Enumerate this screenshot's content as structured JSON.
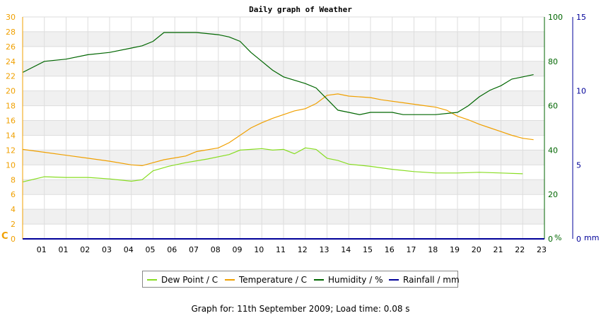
{
  "chart_data": {
    "type": "line",
    "title": "Daily graph of Weather",
    "x_ticks": [
      "01",
      "01",
      "02",
      "03",
      "04",
      "05",
      "06",
      "07",
      "08",
      "09",
      "10",
      "11",
      "12",
      "13",
      "14",
      "15",
      "16",
      "17",
      "18",
      "19",
      "20",
      "21",
      "22",
      "23"
    ],
    "xlim": [
      0,
      24
    ],
    "axes": {
      "left": {
        "unit": "C",
        "ticks": [
          0,
          2,
          4,
          6,
          8,
          10,
          12,
          14,
          16,
          18,
          20,
          22,
          24,
          26,
          28,
          30
        ],
        "range": [
          0,
          30
        ],
        "color": "#f0a000"
      },
      "right1": {
        "unit": "%",
        "ticks": [
          0,
          20,
          40,
          60,
          80,
          100
        ],
        "range": [
          0,
          100
        ],
        "color": "#006600"
      },
      "right2": {
        "unit": "mm",
        "ticks": [
          0,
          5,
          10,
          15
        ],
        "range": [
          0,
          15
        ],
        "color": "#000099"
      }
    },
    "grid": true,
    "legend_position": "bottom",
    "series": [
      {
        "name": "Dew Point / C",
        "axis": "left",
        "color": "#88dd22",
        "points": [
          [
            0,
            7.7
          ],
          [
            1,
            8.4
          ],
          [
            2,
            8.3
          ],
          [
            3,
            8.3
          ],
          [
            4,
            8.1
          ],
          [
            5,
            7.8
          ],
          [
            5.5,
            8.0
          ],
          [
            6,
            9.2
          ],
          [
            6.7,
            9.8
          ],
          [
            7.5,
            10.3
          ],
          [
            8.5,
            10.8
          ],
          [
            9.5,
            11.4
          ],
          [
            10,
            12.0
          ],
          [
            10.5,
            12.1
          ],
          [
            11,
            12.2
          ],
          [
            11.5,
            12.0
          ],
          [
            12,
            12.1
          ],
          [
            12.5,
            11.5
          ],
          [
            13,
            12.3
          ],
          [
            13.5,
            12.1
          ],
          [
            14,
            10.9
          ],
          [
            14.5,
            10.6
          ],
          [
            15,
            10.1
          ],
          [
            16,
            9.8
          ],
          [
            17,
            9.4
          ],
          [
            18,
            9.1
          ],
          [
            19,
            8.9
          ],
          [
            20,
            8.9
          ],
          [
            21,
            9.0
          ],
          [
            22,
            8.9
          ],
          [
            23,
            8.8
          ]
        ]
      },
      {
        "name": "Temperature / C",
        "axis": "left",
        "color": "#f0a000",
        "points": [
          [
            0,
            12.1
          ],
          [
            1,
            11.7
          ],
          [
            2,
            11.3
          ],
          [
            3,
            10.9
          ],
          [
            4,
            10.5
          ],
          [
            5,
            10.0
          ],
          [
            5.5,
            9.9
          ],
          [
            6,
            10.3
          ],
          [
            6.5,
            10.7
          ],
          [
            7.5,
            11.2
          ],
          [
            8,
            11.8
          ],
          [
            9,
            12.3
          ],
          [
            9.5,
            13.0
          ],
          [
            10,
            14.0
          ],
          [
            10.5,
            15.0
          ],
          [
            11,
            15.7
          ],
          [
            11.5,
            16.3
          ],
          [
            12,
            16.8
          ],
          [
            12.5,
            17.3
          ],
          [
            13,
            17.6
          ],
          [
            13.5,
            18.3
          ],
          [
            14,
            19.4
          ],
          [
            14.5,
            19.6
          ],
          [
            15,
            19.3
          ],
          [
            16,
            19.1
          ],
          [
            16.5,
            18.8
          ],
          [
            17.5,
            18.4
          ],
          [
            18.5,
            18.0
          ],
          [
            19,
            17.8
          ],
          [
            19.5,
            17.4
          ],
          [
            20,
            16.6
          ],
          [
            20.5,
            16.1
          ],
          [
            21,
            15.5
          ],
          [
            21.5,
            15.0
          ],
          [
            22,
            14.5
          ],
          [
            22.5,
            14.0
          ],
          [
            23,
            13.6
          ],
          [
            23.5,
            13.4
          ]
        ]
      },
      {
        "name": "Humidity / %",
        "axis": "right1",
        "color": "#006600",
        "points": [
          [
            0,
            75
          ],
          [
            1,
            80
          ],
          [
            2,
            81
          ],
          [
            3,
            83
          ],
          [
            4,
            84
          ],
          [
            5,
            86
          ],
          [
            5.5,
            87
          ],
          [
            6,
            89
          ],
          [
            6.5,
            93
          ],
          [
            7.5,
            93
          ],
          [
            8,
            93
          ],
          [
            9,
            92
          ],
          [
            9.5,
            91
          ],
          [
            10,
            89
          ],
          [
            10.5,
            84
          ],
          [
            11,
            80
          ],
          [
            11.5,
            76
          ],
          [
            12,
            73
          ],
          [
            13,
            70
          ],
          [
            13.5,
            68
          ],
          [
            14,
            63
          ],
          [
            14.5,
            58
          ],
          [
            15,
            57
          ],
          [
            15.5,
            56
          ],
          [
            16,
            57
          ],
          [
            16.5,
            57
          ],
          [
            17,
            57
          ],
          [
            17.5,
            56
          ],
          [
            18,
            56
          ],
          [
            19,
            56
          ],
          [
            20,
            57
          ],
          [
            20.5,
            60
          ],
          [
            21,
            64
          ],
          [
            21.5,
            67
          ],
          [
            22,
            69
          ],
          [
            22.5,
            72
          ],
          [
            23,
            73
          ],
          [
            23.5,
            74
          ]
        ]
      },
      {
        "name": "Rainfall / mm",
        "axis": "right2",
        "color": "#000099",
        "points": [
          [
            0,
            0
          ],
          [
            24,
            0
          ]
        ]
      }
    ],
    "axis_labels": {
      "left": "C",
      "right1": "%",
      "right2": "mm"
    }
  },
  "legend": [
    {
      "label": "Dew Point / C",
      "color": "#88dd22"
    },
    {
      "label": "Temperature / C",
      "color": "#f0a000"
    },
    {
      "label": "Humidity / %",
      "color": "#006600"
    },
    {
      "label": "Rainfall / mm",
      "color": "#000099"
    }
  ],
  "footer": "Graph for: 11th September 2009; Load time: 0.08 s"
}
